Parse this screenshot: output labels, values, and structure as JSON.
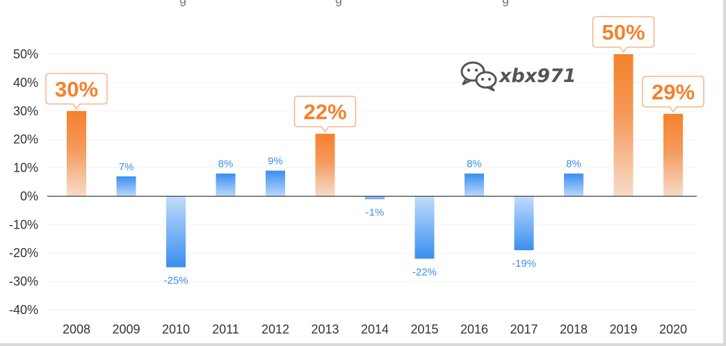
{
  "chart_data": {
    "type": "bar",
    "categories": [
      "2008",
      "2009",
      "2010",
      "2011",
      "2012",
      "2013",
      "2014",
      "2015",
      "2016",
      "2017",
      "2018",
      "2019",
      "2020"
    ],
    "values": [
      30,
      7,
      -25,
      8,
      9,
      22,
      -1,
      -22,
      8,
      -19,
      8,
      50,
      29
    ],
    "data_labels": [
      "30%",
      "7%",
      "-25%",
      "8%",
      "9%",
      "22%",
      "-1%",
      "-22%",
      "8%",
      "-19%",
      "8%",
      "50%",
      "29%"
    ],
    "highlight": [
      true,
      false,
      false,
      false,
      false,
      true,
      false,
      false,
      false,
      false,
      false,
      true,
      true
    ],
    "y_ticks": [
      "50%",
      "40%",
      "30%",
      "20%",
      "10%",
      "0%",
      "-10%",
      "-20%",
      "-30%",
      "-40%"
    ],
    "ylim": [
      -40,
      50
    ],
    "title": "",
    "xlabel": "",
    "ylabel": "",
    "grid": true,
    "colors": {
      "positive_accent": "#f5812b",
      "normal": "#3a8ef0",
      "axis": "#333333"
    }
  },
  "watermark": {
    "text": "xbx971",
    "icon": "wechat-icon"
  }
}
